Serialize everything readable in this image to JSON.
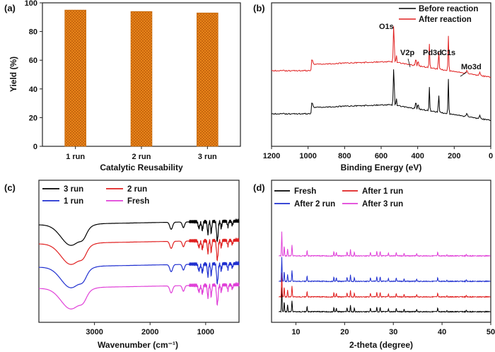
{
  "chart_data": [
    {
      "panel": "(a)",
      "type": "bar",
      "categories": [
        "1 run",
        "2 run",
        "3 run"
      ],
      "values": [
        95,
        94,
        93
      ],
      "xlabel": "Catalytic  Reusability",
      "ylabel": "Yield (%)",
      "ylim": [
        0,
        100
      ],
      "yticks": [
        "0",
        "20",
        "40",
        "60",
        "80",
        "100"
      ],
      "bar_color": "#f08a1c"
    },
    {
      "panel": "(b)",
      "type": "line",
      "xlabel": "Binding Energy (eV)",
      "xlim": [
        1200,
        0
      ],
      "xticks": [
        "1200",
        "1000",
        "800",
        "600",
        "400",
        "200",
        "0"
      ],
      "legend": [
        "Before  reaction",
        "After  reaction"
      ],
      "series_colors": [
        "#000000",
        "#e02020"
      ],
      "peak_labels": [
        "O1s",
        "V2p",
        "Pd3d",
        "C1s",
        "Mo3d"
      ],
      "peaks_eV": [
        531,
        517,
        336,
        285,
        232
      ]
    },
    {
      "panel": "(c)",
      "type": "line",
      "xlabel": "Wavenumber (cm⁻¹)",
      "xlim": [
        4000,
        400
      ],
      "xticks": [
        "3000",
        "2000",
        "1000"
      ],
      "legend": [
        "3 run",
        "2 run",
        "1 run",
        "Fresh"
      ],
      "series_colors": [
        "#000000",
        "#e02020",
        "#1f2fd0",
        "#e040d8"
      ]
    },
    {
      "panel": "(d)",
      "type": "line",
      "xlabel": "2-theta (degree)",
      "xlim": [
        5,
        50
      ],
      "xticks": [
        "10",
        "20",
        "30",
        "40",
        "50"
      ],
      "legend": [
        "Fresh",
        "After 1 run",
        "After 2 run",
        "After 3 run"
      ],
      "series_colors": [
        "#000000",
        "#e02020",
        "#1f2fd0",
        "#e040d8"
      ]
    }
  ]
}
